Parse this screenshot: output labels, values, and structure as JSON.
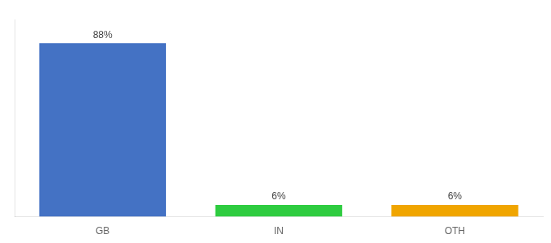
{
  "chart_data": {
    "type": "bar",
    "categories": [
      "GB",
      "IN",
      "OTH"
    ],
    "values": [
      88,
      6,
      6
    ],
    "value_labels": [
      "88%",
      "6%",
      "6%"
    ],
    "colors": [
      "#4472c4",
      "#2ecc40",
      "#f0a500"
    ],
    "ylim": [
      0,
      100
    ],
    "data_labels": true,
    "tick_labels": "x",
    "grid": false
  }
}
